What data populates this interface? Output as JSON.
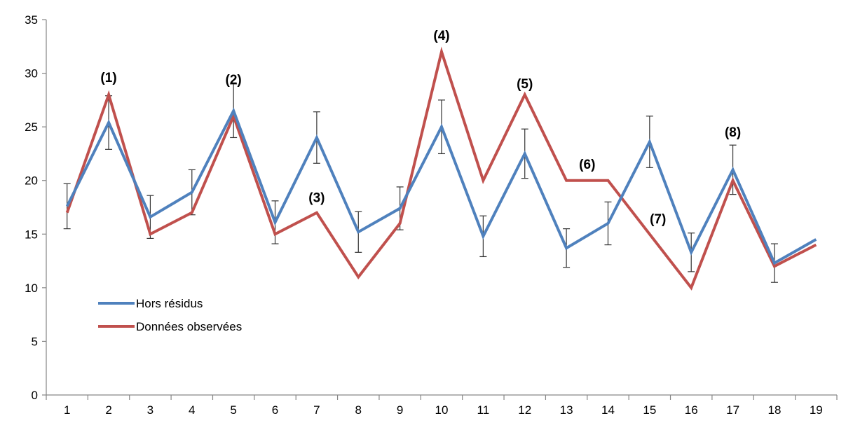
{
  "chart_data": {
    "type": "line",
    "title": "",
    "xlabel": "",
    "ylabel": "",
    "x": [
      1,
      2,
      3,
      4,
      5,
      6,
      7,
      8,
      9,
      10,
      11,
      12,
      13,
      14,
      15,
      16,
      17,
      18,
      19
    ],
    "ylim": [
      0,
      35
    ],
    "y_ticks": [
      0,
      5,
      10,
      15,
      20,
      25,
      30,
      35
    ],
    "grid": false,
    "legend_position": "bottom-left",
    "series": [
      {
        "name": "Hors résidus",
        "color": "#4f81bd",
        "values": [
          17.6,
          25.4,
          16.6,
          18.9,
          26.5,
          16.1,
          24.0,
          15.2,
          17.4,
          25.0,
          14.8,
          22.5,
          13.7,
          16.0,
          23.6,
          13.3,
          21.0,
          12.3,
          14.5
        ],
        "error": [
          2.1,
          2.5,
          2.0,
          2.1,
          2.5,
          2.0,
          2.4,
          1.9,
          2.0,
          2.5,
          1.9,
          2.3,
          1.8,
          2.0,
          2.4,
          1.8,
          2.3,
          1.8,
          0
        ]
      },
      {
        "name": "Données observées",
        "color": "#c0504d",
        "values": [
          17,
          28,
          15,
          17,
          26,
          15,
          17,
          11,
          16,
          32,
          20,
          28,
          20,
          20,
          15,
          10,
          20,
          12,
          14
        ]
      }
    ],
    "annotations": [
      {
        "text": "(1)",
        "x": 2,
        "y": 29.2
      },
      {
        "text": "(2)",
        "x": 5,
        "y": 29.0
      },
      {
        "text": "(3)",
        "x": 7,
        "y": 18.0
      },
      {
        "text": "(4)",
        "x": 10,
        "y": 33.1
      },
      {
        "text": "(5)",
        "x": 12,
        "y": 28.6
      },
      {
        "text": "(6)",
        "x": 13.5,
        "y": 21.1
      },
      {
        "text": "(7)",
        "x": 15.2,
        "y": 16.0
      },
      {
        "text": "(8)",
        "x": 17,
        "y": 24.1
      }
    ]
  }
}
